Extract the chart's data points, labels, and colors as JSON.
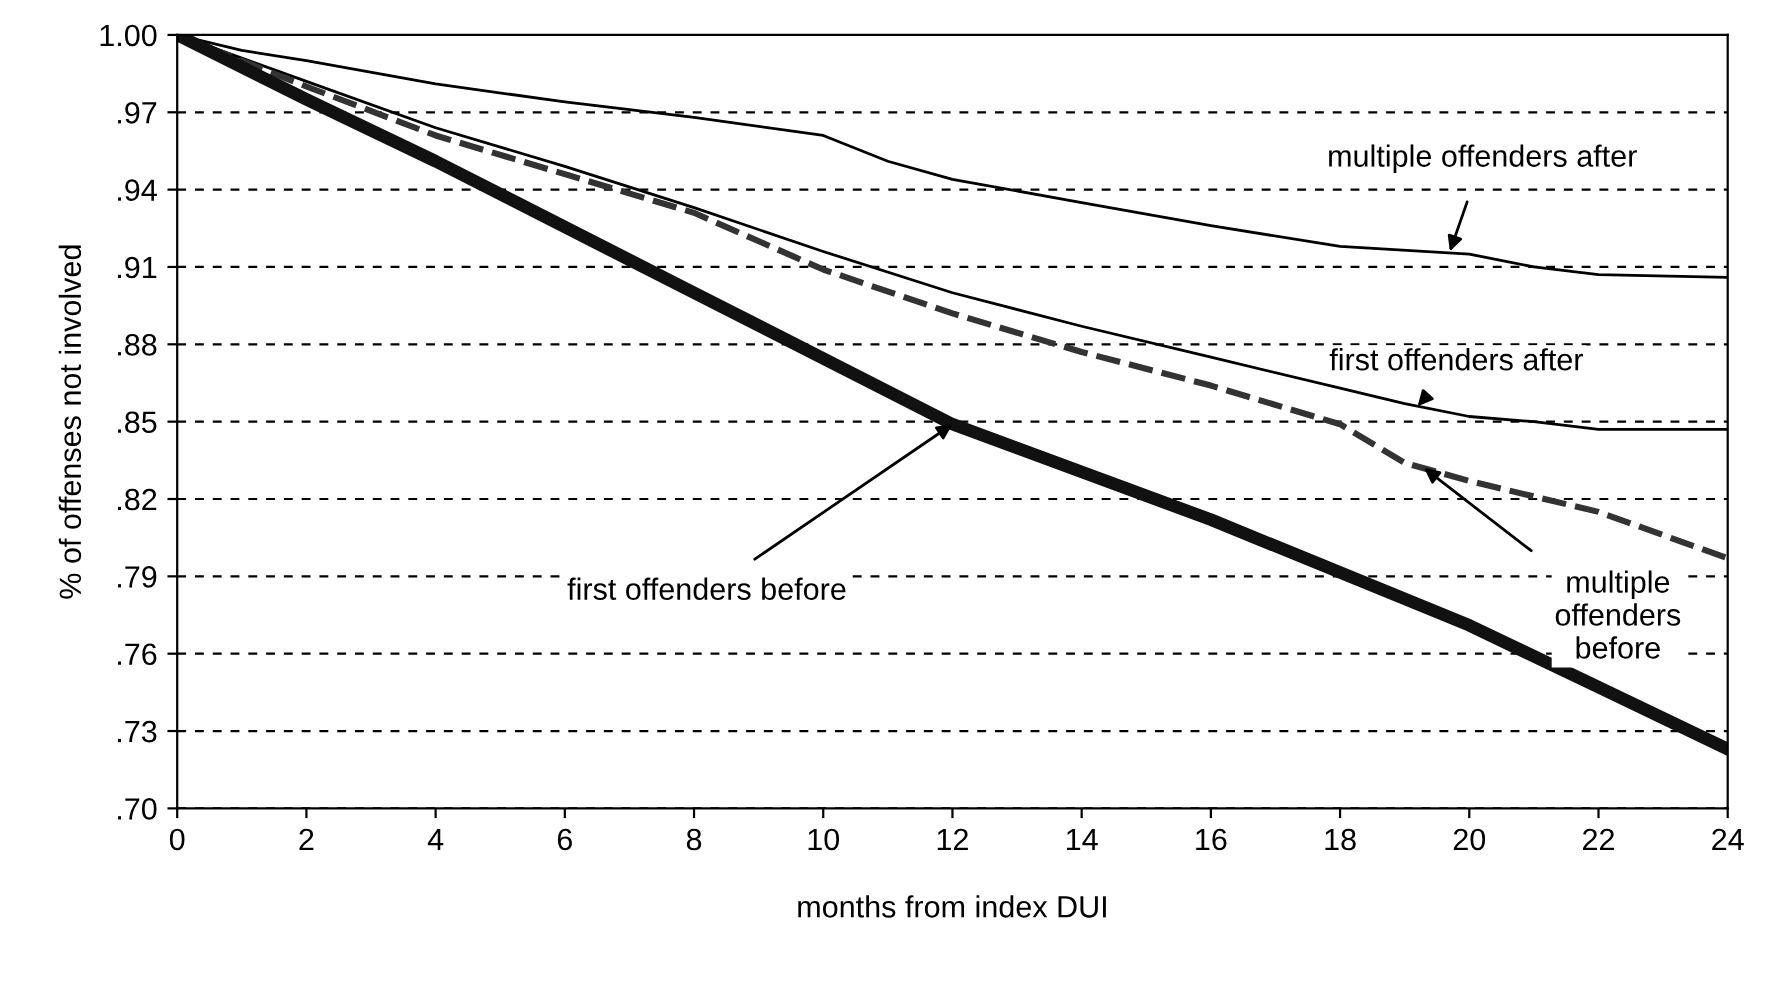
{
  "chart_data": {
    "type": "line",
    "xlabel": "months from index DUI",
    "ylabel": "% of offenses not involved",
    "xlim": [
      0,
      24
    ],
    "xticks": [
      0,
      2,
      4,
      6,
      8,
      10,
      12,
      14,
      16,
      18,
      20,
      22,
      24
    ],
    "ylim": [
      0.7,
      1.0
    ],
    "yticks": [
      {
        "value": 0.7,
        "label": ".70"
      },
      {
        "value": 0.73,
        "label": ".73"
      },
      {
        "value": 0.76,
        "label": ".76"
      },
      {
        "value": 0.79,
        "label": ".79"
      },
      {
        "value": 0.82,
        "label": ".82"
      },
      {
        "value": 0.85,
        "label": ".85"
      },
      {
        "value": 0.88,
        "label": ".88"
      },
      {
        "value": 0.91,
        "label": ".91"
      },
      {
        "value": 0.94,
        "label": ".94"
      },
      {
        "value": 0.97,
        "label": ".97"
      },
      {
        "value": 1.0,
        "label": "1.00"
      }
    ],
    "grid": "y",
    "legend": false,
    "marker": "none",
    "series": [
      {
        "color": "#000000",
        "line_style": "solid",
        "x": [
          0,
          1,
          2,
          4,
          6,
          8,
          10,
          11,
          12,
          14,
          16,
          18,
          20,
          21,
          22,
          24
        ],
        "values": [
          1.0,
          0.994,
          0.99,
          0.981,
          0.974,
          0.968,
          0.961,
          0.951,
          0.944,
          0.935,
          0.926,
          0.918,
          0.915,
          0.91,
          0.907,
          0.906
        ]
      },
      {
        "color": "#000000",
        "line_style": "solid",
        "x": [
          0,
          1,
          2,
          4,
          6,
          8,
          10,
          12,
          14,
          16,
          18,
          19,
          20,
          21,
          22,
          24
        ],
        "values": [
          1.0,
          0.991,
          0.982,
          0.964,
          0.949,
          0.933,
          0.916,
          0.9,
          0.887,
          0.875,
          0.863,
          0.857,
          0.852,
          0.85,
          0.847,
          0.847
        ]
      },
      {
        "color": "#333333",
        "line_style": "dashed",
        "x": [
          0,
          2,
          4,
          6,
          8,
          10,
          12,
          14,
          16,
          18,
          19,
          20,
          22,
          23,
          24
        ],
        "values": [
          1.0,
          0.98,
          0.961,
          0.946,
          0.931,
          0.909,
          0.892,
          0.877,
          0.864,
          0.849,
          0.834,
          0.827,
          0.815,
          0.806,
          0.797
        ]
      },
      {
        "color": "#111111",
        "line_style": "solid",
        "x": [
          0,
          2,
          4,
          8,
          12,
          16,
          20,
          22,
          24
        ],
        "values": [
          1.0,
          0.975,
          0.951,
          0.9,
          0.849,
          0.812,
          0.771,
          0.747,
          0.723
        ]
      }
    ],
    "annotations": [
      {
        "text": "multiple offenders after",
        "x": 19.7,
        "y": 0.916
      },
      {
        "text": "first offenders after",
        "x": 19.2,
        "y": 0.856
      },
      {
        "text": "multiple\noffenders\nbefore",
        "x": 19.3,
        "y": 0.832
      },
      {
        "text": "first offenders before",
        "x": 12,
        "y": 0.849
      }
    ]
  }
}
